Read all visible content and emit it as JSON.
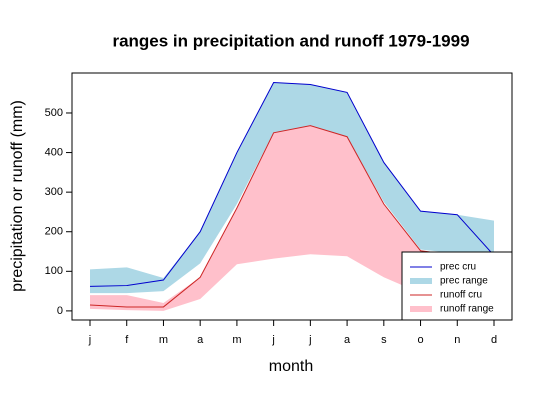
{
  "chart_data": {
    "type": "range-line",
    "title": "ranges in precipitation and runoff 1979-1999",
    "x_label": "month",
    "y_label": "precipitation or runoff (mm)",
    "categories": [
      "j",
      "f",
      "m",
      "a",
      "m",
      "j",
      "j",
      "a",
      "s",
      "o",
      "n",
      "d"
    ],
    "ylim": [
      -23,
      601
    ],
    "yticks": [
      0,
      100,
      200,
      300,
      400,
      500
    ],
    "legend": "bottom-right",
    "series": [
      {
        "name": "prec cru",
        "kind": "line",
        "color": "#0000cd",
        "values": [
          62,
          64,
          78,
          200,
          400,
          577,
          572,
          552,
          375,
          252,
          243,
          140
        ]
      },
      {
        "name": "prec range",
        "kind": "range",
        "color": "#add8e6",
        "upper": [
          105,
          110,
          83,
          200,
          400,
          577,
          572,
          552,
          375,
          252,
          243,
          228
        ],
        "lower": [
          45,
          45,
          50,
          120,
          270,
          450,
          468,
          440,
          275,
          155,
          145,
          140
        ]
      },
      {
        "name": "runoff cru",
        "kind": "line",
        "color": "#cd2626",
        "values": [
          15,
          10,
          10,
          85,
          260,
          450,
          468,
          440,
          270,
          152,
          140,
          140
        ]
      },
      {
        "name": "runoff range",
        "kind": "range",
        "color": "#ffc0cb",
        "upper": [
          40,
          40,
          20,
          85,
          260,
          450,
          468,
          440,
          270,
          152,
          140,
          140
        ],
        "lower": [
          5,
          2,
          0,
          30,
          118,
          132,
          143,
          138,
          85,
          45,
          40,
          40
        ]
      }
    ]
  }
}
